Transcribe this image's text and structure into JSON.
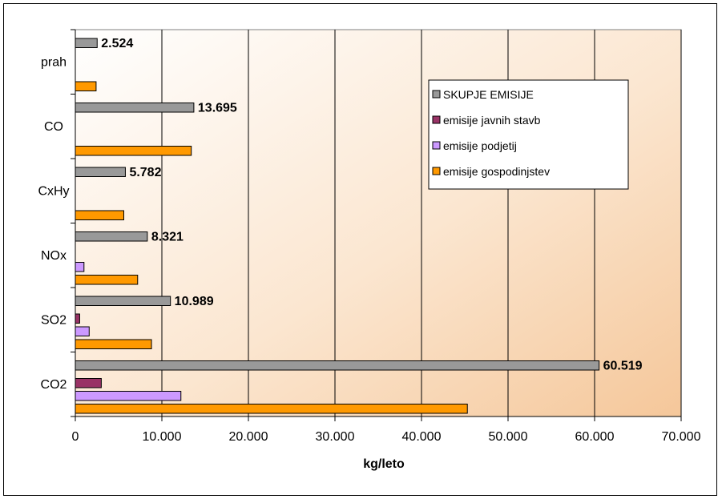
{
  "chart_data": {
    "type": "bar",
    "orientation": "horizontal",
    "categories": [
      "prah",
      "CO",
      "CxHy",
      "NOx",
      "SO2",
      "CO2"
    ],
    "series": [
      {
        "name": "SKUPJE EMISIJE",
        "color": "#999999",
        "values": [
          2524,
          13695,
          5782,
          8321,
          10989,
          60519
        ],
        "labels": [
          "2.524",
          "13.695",
          "5.782",
          "8.321",
          "10.989",
          "60.519"
        ]
      },
      {
        "name": "emisije javnih stavb",
        "color": "#993366",
        "values": [
          0,
          0,
          0,
          0,
          500,
          3000
        ]
      },
      {
        "name": "emisije podjetij",
        "color": "#CC99FF",
        "values": [
          0,
          0,
          0,
          1000,
          1600,
          12200
        ]
      },
      {
        "name": "emisije gospodinjstev",
        "color": "#FF9900",
        "values": [
          2400,
          13400,
          5600,
          7200,
          8800,
          45300
        ]
      }
    ],
    "xlabel": "kg/leto",
    "xlim": [
      0,
      70000
    ],
    "xticks": [
      0,
      10000,
      20000,
      30000,
      40000,
      50000,
      60000,
      70000
    ],
    "xtick_labels": [
      "0",
      "10.000",
      "20.000",
      "30.000",
      "40.000",
      "50.000",
      "60.000",
      "70.000"
    ],
    "grid": "vertical",
    "legend_position": "right",
    "plot_background": "gradient white to light orange"
  }
}
